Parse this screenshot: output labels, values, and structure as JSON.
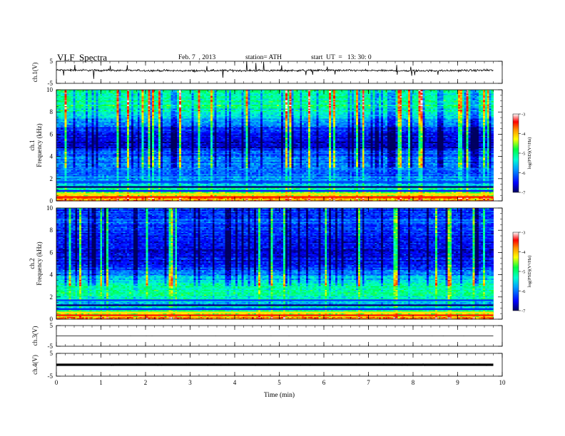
{
  "header": {
    "title": "VLF  Spectra",
    "date": "Feb. 7  , 2013",
    "station": "station= ATH",
    "start": "start  UT  =   13: 30: 0"
  },
  "chart_data": [
    {
      "type": "line",
      "panel": "ch1",
      "ylabel": "ch.1(V)",
      "ylim": [
        -5,
        5
      ],
      "yticks": [
        -5,
        5
      ],
      "x": [
        0,
        1,
        2,
        3,
        4,
        5,
        6,
        7,
        8,
        9,
        9.8
      ],
      "values": [
        1.0,
        0.9,
        0.8,
        0.7,
        0.8,
        0.8,
        0.9,
        0.8,
        0.7,
        0.8,
        0.9
      ]
    },
    {
      "type": "heatmap",
      "panel": "ch1",
      "ylabel": [
        "ch.1",
        "Frequency (kHz)"
      ],
      "ylim": [
        0,
        10
      ],
      "yticks": [
        0,
        2,
        4,
        6,
        8,
        10
      ],
      "colorbar": {
        "label": "log(PSD)(V²/Hz)",
        "range": [
          -7,
          -3
        ],
        "ticks": [
          -3,
          -4,
          -5,
          -6,
          -7
        ]
      },
      "freq_profile_kHz": [
        0,
        0.5,
        1,
        1.5,
        2,
        2.5,
        3,
        3.5,
        4,
        4.5,
        5,
        5.5,
        6,
        6.5,
        7,
        7.5,
        8,
        8.5,
        9,
        9.5,
        10
      ],
      "log_psd_profile": [
        -3.5,
        -4.3,
        -4.8,
        -5.7,
        -5.9,
        -6.1,
        -6.0,
        -5.8,
        -6.1,
        -6.3,
        -6.6,
        -6.7,
        -6.5,
        -6.3,
        -5.9,
        -5.6,
        -5.3,
        -5.2,
        -5.1,
        -5.0,
        -4.9
      ]
    },
    {
      "type": "heatmap",
      "panel": "ch2",
      "ylabel": [
        "ch.2",
        "Frequency (kHz)"
      ],
      "ylim": [
        0,
        10
      ],
      "yticks": [
        0,
        2,
        4,
        6,
        8,
        10
      ],
      "colorbar": {
        "label": "log(PSD)(V²/Hz)",
        "range": [
          -7,
          -3
        ],
        "ticks": [
          -3,
          -4,
          -5,
          -6,
          -7
        ]
      },
      "freq_profile_kHz": [
        0,
        0.5,
        1,
        1.5,
        2,
        2.5,
        3,
        3.5,
        4,
        4.5,
        5,
        5.5,
        6,
        6.5,
        7,
        7.5,
        8,
        8.5,
        9,
        9.5,
        10
      ],
      "log_psd_profile": [
        -3.6,
        -4.5,
        -5.3,
        -5.6,
        -5.3,
        -5.1,
        -5.2,
        -5.4,
        -5.8,
        -6.3,
        -6.5,
        -6.6,
        -6.6,
        -6.5,
        -6.5,
        -6.4,
        -6.3,
        -6.2,
        -6.2,
        -6.2,
        -6.2
      ]
    },
    {
      "type": "line",
      "panel": "ch3",
      "ylabel": "ch.3(V)",
      "ylim": [
        -5,
        5
      ],
      "yticks": [
        -5,
        5
      ],
      "x": [
        0,
        9.8
      ],
      "values": [
        0.0,
        0.0
      ]
    },
    {
      "type": "line",
      "panel": "ch4",
      "ylabel": "ch.4(V)",
      "ylim": [
        -5,
        5
      ],
      "yticks": [
        -5,
        5
      ],
      "x": [
        0,
        9.8
      ],
      "values": [
        0.0,
        0.0
      ]
    }
  ],
  "xaxis": {
    "label": "Time  (min)",
    "xlim": [
      0,
      10
    ],
    "ticks": [
      0,
      1,
      2,
      3,
      4,
      5,
      6,
      7,
      8,
      9,
      10
    ],
    "data_end": 9.8
  }
}
